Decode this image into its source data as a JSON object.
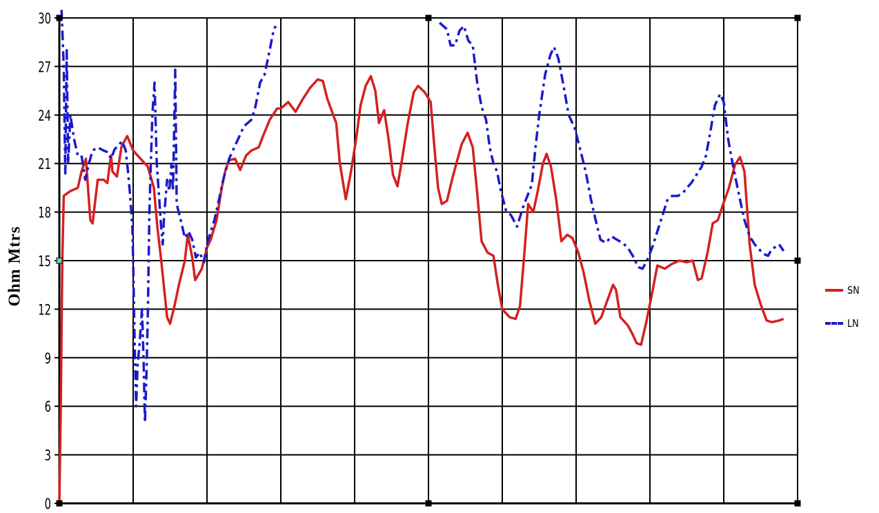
{
  "chart_data": {
    "type": "line",
    "title": "",
    "xlabel": "",
    "ylabel": "Ohm Mtrs",
    "ylim": [
      0,
      30
    ],
    "yticks": [
      0,
      3,
      6,
      9,
      12,
      15,
      18,
      21,
      24,
      27,
      30
    ],
    "xlim": [
      0,
      100
    ],
    "x_gridlines": 10,
    "grid": true,
    "legend_placement": "right",
    "series": [
      {
        "name": "SN",
        "color": "#d42020",
        "style": "solid",
        "points": [
          [
            0,
            0
          ],
          [
            0.2,
            6
          ],
          [
            0.4,
            15
          ],
          [
            0.6,
            19
          ],
          [
            1.5,
            19.3
          ],
          [
            2.5,
            19.5
          ],
          [
            3.0,
            20.5
          ],
          [
            3.6,
            21.3
          ],
          [
            4.2,
            17.5
          ],
          [
            4.5,
            17.3
          ],
          [
            5.2,
            20
          ],
          [
            6.0,
            20
          ],
          [
            6.5,
            19.8
          ],
          [
            7.0,
            21.5
          ],
          [
            7.2,
            20.5
          ],
          [
            7.8,
            20.2
          ],
          [
            8.4,
            22.0
          ],
          [
            8.6,
            22.2
          ],
          [
            9.2,
            22.7
          ],
          [
            10.0,
            21.8
          ],
          [
            11.0,
            21.3
          ],
          [
            12.0,
            20.8
          ],
          [
            12.8,
            19.5
          ],
          [
            13.3,
            17
          ],
          [
            13.8,
            15
          ],
          [
            14.6,
            11.5
          ],
          [
            15.0,
            11.1
          ],
          [
            15.6,
            12.2
          ],
          [
            16.2,
            13.5
          ],
          [
            17.0,
            15
          ],
          [
            17.4,
            16.6
          ],
          [
            18.0,
            15.2
          ],
          [
            18.4,
            13.8
          ],
          [
            19.3,
            14.5
          ],
          [
            20.0,
            15.8
          ],
          [
            20.5,
            16.3
          ],
          [
            21.3,
            17.5
          ],
          [
            22.0,
            19.5
          ],
          [
            22.5,
            20.6
          ],
          [
            23.0,
            21.2
          ],
          [
            23.8,
            21.3
          ],
          [
            24.5,
            20.6
          ],
          [
            25.3,
            21.5
          ],
          [
            26.0,
            21.8
          ],
          [
            27.0,
            22.0
          ],
          [
            27.5,
            22.6
          ],
          [
            28.5,
            23.7
          ],
          [
            29.5,
            24.4
          ],
          [
            30.0,
            24.4
          ],
          [
            31.0,
            24.8
          ],
          [
            32.0,
            24.2
          ],
          [
            33.0,
            25
          ],
          [
            34.0,
            25.7
          ],
          [
            35.0,
            26.2
          ],
          [
            35.7,
            26.1
          ],
          [
            36.3,
            25
          ],
          [
            37.5,
            23.5
          ],
          [
            38.0,
            21
          ],
          [
            38.8,
            18.8
          ],
          [
            39.5,
            20.5
          ],
          [
            40.2,
            22.5
          ],
          [
            40.8,
            24.6
          ],
          [
            41.5,
            25.8
          ],
          [
            42.2,
            26.4
          ],
          [
            42.8,
            25.5
          ],
          [
            43.3,
            23.5
          ],
          [
            44.0,
            24.3
          ],
          [
            44.6,
            22.5
          ],
          [
            45.2,
            20.3
          ],
          [
            45.8,
            19.6
          ],
          [
            46.4,
            21.2
          ],
          [
            47.2,
            23.5
          ],
          [
            48.0,
            25.4
          ],
          [
            48.6,
            25.8
          ],
          [
            49.5,
            25.4
          ],
          [
            50.3,
            24.8
          ],
          [
            50.8,
            22
          ],
          [
            51.3,
            19.5
          ],
          [
            51.8,
            18.5
          ],
          [
            52.5,
            18.7
          ],
          [
            53.3,
            20.2
          ],
          [
            54.5,
            22.2
          ],
          [
            55.3,
            22.9
          ],
          [
            56.0,
            22
          ],
          [
            56.6,
            19.2
          ],
          [
            57.2,
            16.2
          ],
          [
            58.0,
            15.5
          ],
          [
            58.8,
            15.3
          ],
          [
            59.4,
            13.5
          ],
          [
            60.0,
            12
          ],
          [
            61.0,
            11.5
          ],
          [
            61.8,
            11.4
          ],
          [
            62.4,
            12.2
          ],
          [
            63.0,
            15.5
          ],
          [
            63.5,
            18.5
          ],
          [
            64.2,
            18
          ],
          [
            64.8,
            19.3
          ],
          [
            65.5,
            21
          ],
          [
            66.0,
            21.6
          ],
          [
            66.6,
            20.8
          ],
          [
            67.3,
            18.8
          ],
          [
            68.0,
            16.2
          ],
          [
            68.8,
            16.6
          ],
          [
            69.5,
            16.4
          ],
          [
            70.3,
            15.5
          ],
          [
            71.0,
            14.3
          ],
          [
            71.8,
            12.5
          ],
          [
            72.6,
            11.1
          ],
          [
            73.4,
            11.5
          ],
          [
            74.2,
            12.5
          ],
          [
            75.0,
            13.5
          ],
          [
            75.4,
            13.2
          ],
          [
            76.0,
            11.5
          ],
          [
            77.0,
            11
          ],
          [
            77.6,
            10.5
          ],
          [
            78.2,
            9.9
          ],
          [
            78.8,
            9.8
          ],
          [
            79.5,
            11.2
          ],
          [
            80.3,
            13
          ],
          [
            81.0,
            14.7
          ],
          [
            82.0,
            14.5
          ],
          [
            83.0,
            14.8
          ],
          [
            84.0,
            15.0
          ],
          [
            85.0,
            14.9
          ],
          [
            85.8,
            15.0
          ],
          [
            86.5,
            13.8
          ],
          [
            87.0,
            13.9
          ],
          [
            87.8,
            15.5
          ],
          [
            88.5,
            17.3
          ],
          [
            89.2,
            17.5
          ],
          [
            90.0,
            18.6
          ],
          [
            90.7,
            19.5
          ],
          [
            91.5,
            20.9
          ],
          [
            92.2,
            21.4
          ],
          [
            92.8,
            20.5
          ],
          [
            93.5,
            16
          ],
          [
            94.2,
            13.5
          ],
          [
            95.0,
            12.3
          ],
          [
            95.8,
            11.3
          ],
          [
            96.5,
            11.2
          ],
          [
            97.5,
            11.3
          ],
          [
            98.1,
            11.4
          ]
        ]
      },
      {
        "name": "LN",
        "color": "#1a1acc",
        "style": "dashdot",
        "points": [
          [
            0.3,
            30.5
          ],
          [
            0.6,
            27
          ],
          [
            0.8,
            20.3
          ],
          [
            1.0,
            28
          ],
          [
            1.2,
            21
          ],
          [
            1.5,
            24
          ],
          [
            2.0,
            22.5
          ],
          [
            2.5,
            21.5
          ],
          [
            3.0,
            21.5
          ],
          [
            3.5,
            20
          ],
          [
            4.0,
            21
          ],
          [
            4.5,
            21.8
          ],
          [
            5.2,
            22
          ],
          [
            6.0,
            21.8
          ],
          [
            6.6,
            21.7
          ],
          [
            7.0,
            21.3
          ],
          [
            7.5,
            21.9
          ],
          [
            8.0,
            22.1
          ],
          [
            8.5,
            22.4
          ],
          [
            9.0,
            21.8
          ],
          [
            9.3,
            20.5
          ],
          [
            9.6,
            19
          ],
          [
            9.9,
            17
          ],
          [
            10.0,
            15
          ],
          [
            10.2,
            10
          ],
          [
            10.4,
            6
          ],
          [
            10.6,
            8.5
          ],
          [
            10.9,
            10
          ],
          [
            11.2,
            12
          ],
          [
            11.4,
            9
          ],
          [
            11.6,
            5
          ],
          [
            11.8,
            8
          ],
          [
            12.0,
            12
          ],
          [
            12.2,
            18
          ],
          [
            12.6,
            24
          ],
          [
            12.9,
            26
          ],
          [
            13.2,
            21
          ],
          [
            13.5,
            19
          ],
          [
            13.8,
            17
          ],
          [
            14.0,
            16
          ],
          [
            14.2,
            17.8
          ],
          [
            14.6,
            20
          ],
          [
            14.9,
            19.3
          ],
          [
            15.2,
            21
          ],
          [
            15.4,
            19.3
          ],
          [
            15.7,
            26.8
          ],
          [
            15.9,
            18.5
          ],
          [
            16.5,
            17.4
          ],
          [
            17.0,
            16.4
          ],
          [
            17.5,
            16.8
          ],
          [
            18.0,
            16.3
          ],
          [
            18.5,
            15.2
          ],
          [
            19.0,
            15.5
          ],
          [
            19.6,
            14.9
          ],
          [
            20.0,
            16
          ],
          [
            20.5,
            16.8
          ],
          [
            21.0,
            17.5
          ],
          [
            21.5,
            18.5
          ],
          [
            22.2,
            20
          ],
          [
            23.0,
            21.3
          ],
          [
            24.0,
            22.3
          ],
          [
            25.0,
            23.3
          ],
          [
            26.0,
            23.7
          ],
          [
            26.5,
            24.4
          ],
          [
            27.2,
            26
          ],
          [
            27.8,
            26.5
          ],
          [
            28.5,
            28
          ],
          [
            29.0,
            29.2
          ],
          [
            29.3,
            29.5
          ],
          null,
          [
            51.5,
            29.7
          ],
          [
            52.5,
            29.3
          ],
          [
            53.0,
            28.3
          ],
          [
            53.6,
            28.3
          ],
          [
            54.2,
            29.2
          ],
          [
            54.8,
            29.5
          ],
          [
            55.4,
            28.6
          ],
          [
            56.0,
            28.3
          ],
          [
            56.6,
            26
          ],
          [
            57.2,
            24.5
          ],
          [
            57.8,
            23.7
          ],
          [
            58.3,
            22
          ],
          [
            58.8,
            21
          ],
          [
            59.3,
            20.5
          ],
          [
            59.8,
            19.3
          ],
          [
            60.5,
            18.1
          ],
          [
            61.2,
            17.8
          ],
          [
            62.0,
            17.1
          ],
          [
            62.8,
            18.3
          ],
          [
            63.4,
            19
          ],
          [
            64.0,
            19.7
          ],
          [
            64.5,
            22
          ],
          [
            65.0,
            24
          ],
          [
            65.8,
            26.5
          ],
          [
            66.5,
            27.7
          ],
          [
            67.0,
            28.2
          ],
          [
            67.6,
            27.5
          ],
          [
            68.3,
            25.8
          ],
          [
            69.0,
            24
          ],
          [
            69.8,
            23.2
          ],
          [
            70.6,
            21.8
          ],
          [
            71.3,
            20.5
          ],
          [
            72.0,
            18.8
          ],
          [
            72.6,
            17.6
          ],
          [
            73.3,
            16.3
          ],
          [
            74.0,
            16.1
          ],
          [
            74.8,
            16.5
          ],
          [
            75.5,
            16.3
          ],
          [
            76.3,
            16.1
          ],
          [
            77.0,
            15.8
          ],
          [
            77.8,
            15.2
          ],
          [
            78.4,
            14.6
          ],
          [
            79.0,
            14.5
          ],
          [
            79.6,
            15
          ],
          [
            80.3,
            15.8
          ],
          [
            81.0,
            16.8
          ],
          [
            81.7,
            17.8
          ],
          [
            82.4,
            18.8
          ],
          [
            83.0,
            19
          ],
          [
            83.8,
            19
          ],
          [
            84.5,
            19.2
          ],
          [
            85.0,
            19.5
          ],
          [
            85.6,
            19.8
          ],
          [
            86.3,
            20.3
          ],
          [
            87.0,
            20.8
          ],
          [
            87.6,
            21.5
          ],
          [
            88.2,
            23
          ],
          [
            88.8,
            24.6
          ],
          [
            89.5,
            25.3
          ],
          [
            90.0,
            24.8
          ],
          [
            90.6,
            22.5
          ],
          [
            91.2,
            21
          ],
          [
            92.0,
            19.2
          ],
          [
            92.8,
            17.5
          ],
          [
            93.5,
            16.5
          ],
          [
            94.2,
            16
          ],
          [
            95.0,
            15.6
          ],
          [
            95.5,
            15.4
          ],
          [
            96.0,
            15.3
          ],
          [
            96.5,
            15.7
          ],
          [
            97.5,
            16
          ],
          [
            98.1,
            15.6
          ]
        ]
      }
    ]
  }
}
